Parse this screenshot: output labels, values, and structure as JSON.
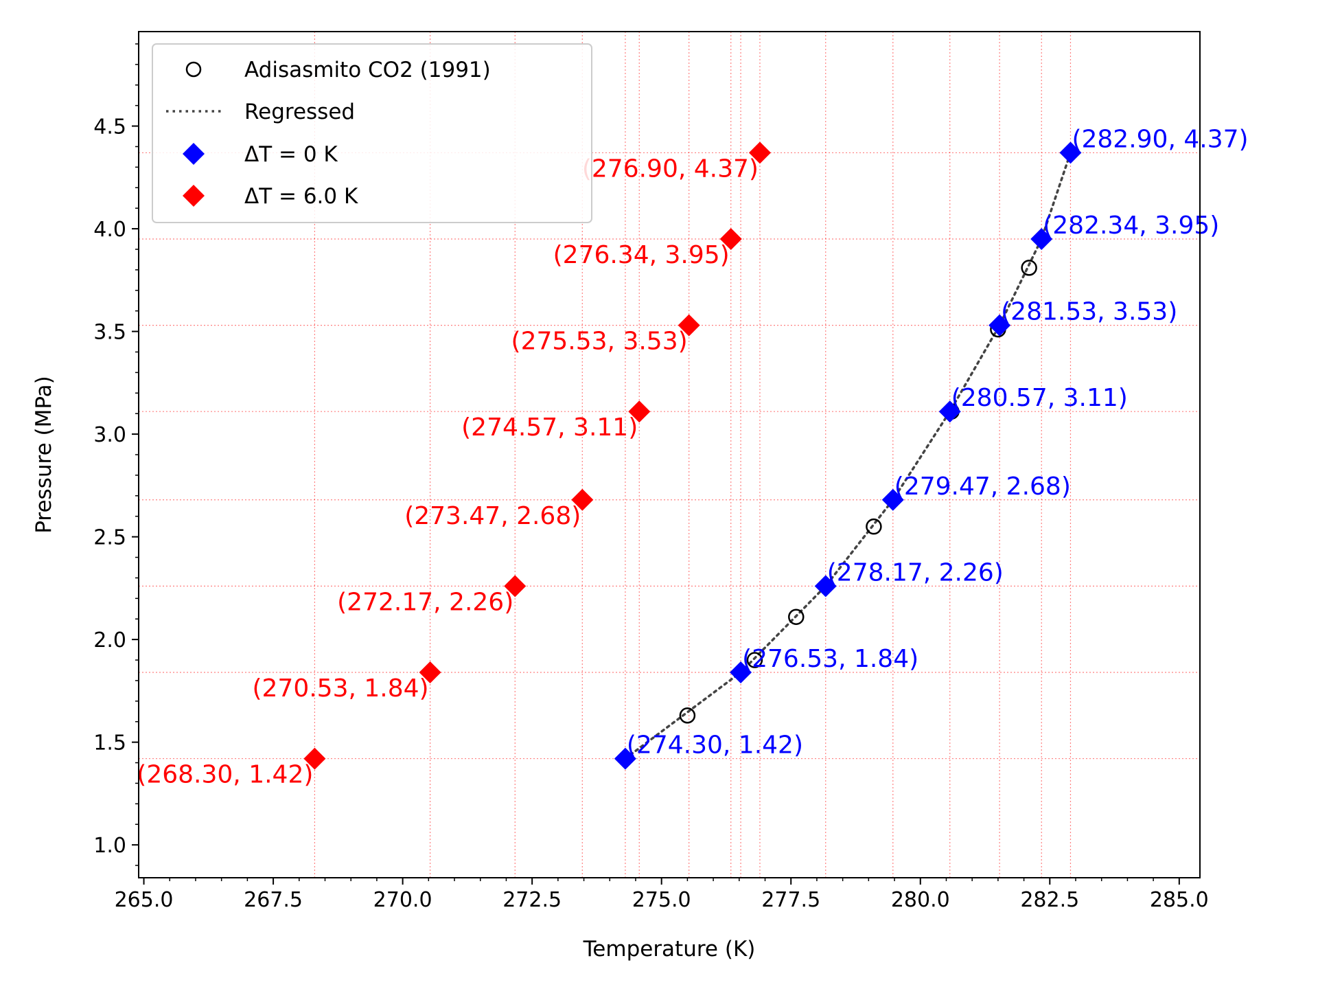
{
  "chart_data": {
    "type": "scatter",
    "xlabel": "Temperature (K)",
    "ylabel": "Pressure (MPa)",
    "xlim": [
      264.9,
      285.4
    ],
    "ylim": [
      0.84,
      4.96
    ],
    "x_ticks": [
      "265.0",
      "267.5",
      "270.0",
      "272.5",
      "275.0",
      "277.5",
      "280.0",
      "282.5",
      "285.0"
    ],
    "y_ticks": [
      "1.0",
      "1.5",
      "2.0",
      "2.5",
      "3.0",
      "3.5",
      "4.0",
      "4.5"
    ],
    "grid": "dotted red lines at the ΔT = 0 K and ΔT = 6.0 K point coordinates",
    "legend_position": "top-left",
    "series": [
      {
        "name": "Adisasmito CO2 (1991)",
        "marker": "open-circle",
        "color": "#000000",
        "x": [
          275.5,
          276.8,
          277.6,
          279.1,
          280.6,
          281.5,
          282.1
        ],
        "y": [
          1.63,
          1.9,
          2.11,
          2.55,
          3.11,
          3.51,
          3.81
        ]
      },
      {
        "name": "Regressed",
        "line": "dotted",
        "color": "#444444",
        "x": [
          274.3,
          276.53,
          278.17,
          279.47,
          280.57,
          281.53,
          282.34,
          282.9
        ],
        "y": [
          1.42,
          1.84,
          2.26,
          2.68,
          3.11,
          3.53,
          3.95,
          4.37
        ]
      },
      {
        "name": "ΔT = 0 K",
        "marker": "diamond",
        "color": "#0000ff",
        "x": [
          274.3,
          276.53,
          278.17,
          279.47,
          280.57,
          281.53,
          282.34,
          282.9
        ],
        "y": [
          1.42,
          1.84,
          2.26,
          2.68,
          3.11,
          3.53,
          3.95,
          4.37
        ],
        "labels": [
          "(274.30, 1.42)",
          "(276.53, 1.84)",
          "(278.17, 2.26)",
          "(279.47, 2.68)",
          "(280.57, 3.11)",
          "(281.53, 3.53)",
          "(282.34, 3.95)",
          "(282.90, 4.37)"
        ]
      },
      {
        "name": "ΔT = 6.0 K",
        "marker": "diamond",
        "color": "#ff0000",
        "x": [
          268.3,
          270.53,
          272.17,
          273.47,
          274.57,
          275.53,
          276.34,
          276.9
        ],
        "y": [
          1.42,
          1.84,
          2.26,
          2.68,
          3.11,
          3.53,
          3.95,
          4.37
        ],
        "labels": [
          "(268.30, 1.42)",
          "(270.53, 1.84)",
          "(272.17, 2.26)",
          "(273.47, 2.68)",
          "(274.57, 3.11)",
          "(275.53, 3.53)",
          "(276.34, 3.95)",
          "(276.90, 4.37)"
        ]
      }
    ]
  }
}
